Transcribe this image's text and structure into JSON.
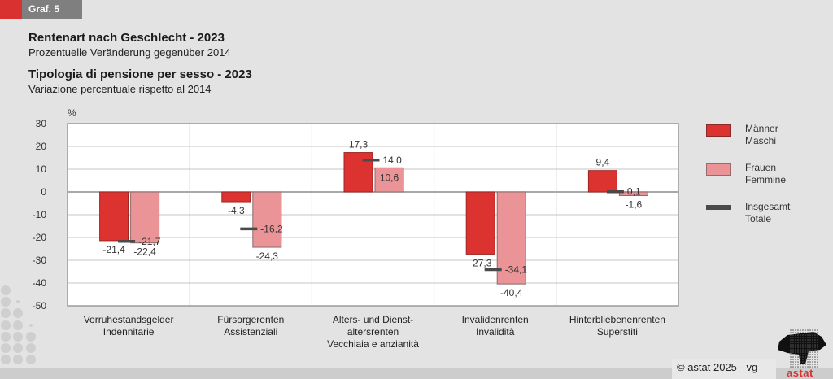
{
  "header": {
    "tag_label": "Graf. 5",
    "title_de": "Rentenart nach Geschlecht - 2023",
    "subtitle_de": "Prozentuelle Veränderung gegenüber 2014",
    "title_it": "Tipologia di pensione per sesso - 2023",
    "subtitle_it": "Variazione percentuale rispetto al 2014"
  },
  "footer": {
    "credit": "© astat 2025 - vg",
    "logo_text": "astat"
  },
  "colors": {
    "maenner": "#dc3330",
    "frauen": "#eb9497",
    "total": "#4a4a4a",
    "accent": "#d9312f",
    "tag_grey": "#7f7f7f"
  },
  "chart_data": {
    "type": "bar",
    "title": "Rentenart nach Geschlecht - 2023 / Tipologia di pensione per sesso - 2023",
    "ylabel": "%",
    "xlabel": "",
    "ylim": [
      -50,
      30
    ],
    "yticks": [
      30,
      20,
      10,
      0,
      -10,
      -20,
      -30,
      -40,
      -50
    ],
    "grid": true,
    "legend_position": "right",
    "categories": [
      [
        "Vorruhestandsgelder",
        "Indennitarie"
      ],
      [
        "Fürsorgerenten",
        "Assistenziali"
      ],
      [
        "Alters- und Dienst-",
        "altersrenten",
        "Vecchiaia e anzianità"
      ],
      [
        "Invalidenrenten",
        "Invalidità"
      ],
      [
        "Hinterbliebenenrenten",
        "Superstiti"
      ]
    ],
    "series": [
      {
        "name": "Männer / Maschi",
        "legend": [
          "Männer",
          "Maschi"
        ],
        "kind": "bar",
        "values": [
          -21.4,
          -4.3,
          17.3,
          -27.3,
          9.4
        ],
        "labels": [
          "-21,4",
          "-4,3",
          "17,3",
          "-27,3",
          "9,4"
        ]
      },
      {
        "name": "Frauen / Femmine",
        "legend": [
          "Frauen",
          "Femmine"
        ],
        "kind": "bar",
        "values": [
          -22.4,
          -24.3,
          10.6,
          -40.4,
          -1.6
        ],
        "labels": [
          "-22,4",
          "-24,3",
          "10,6",
          "-40,4",
          "-1,6"
        ]
      },
      {
        "name": "Insgesamt / Totale",
        "legend": [
          "Insgesamt",
          "Totale"
        ],
        "kind": "marker",
        "values": [
          -21.7,
          -16.2,
          14.0,
          -34.1,
          0.1
        ],
        "labels": [
          "-21,7",
          "-16,2",
          "14,0",
          "-34,1",
          "0,1"
        ]
      }
    ]
  }
}
